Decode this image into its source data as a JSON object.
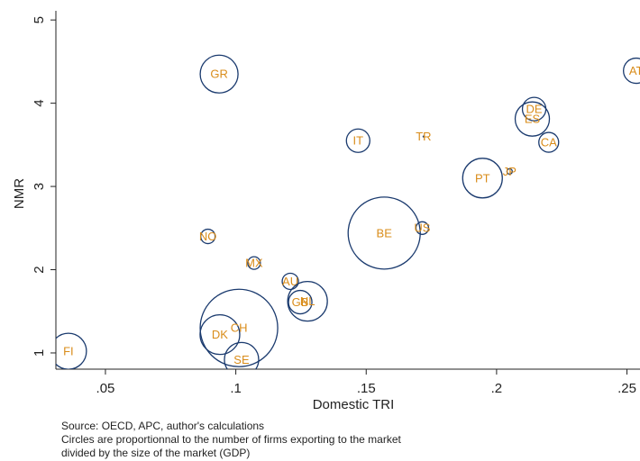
{
  "chart_data": {
    "type": "bubble",
    "xlabel": "Domestic TRI",
    "ylabel": "NMR",
    "labels": [
      "FI",
      "GR",
      "IT",
      "TR",
      "DE",
      "ES",
      "CA",
      "AT",
      "PT",
      "JP",
      "BE",
      "US",
      "NO",
      "MX",
      "AU",
      "GB",
      "NL",
      "DK",
      "CH",
      "SE"
    ],
    "x": [
      0.0358,
      0.0936,
      0.1469,
      0.172,
      0.2144,
      0.2137,
      0.22,
      0.2535,
      0.1946,
      0.205,
      0.1569,
      0.1715,
      0.0893,
      0.107,
      0.1209,
      0.1247,
      0.1275,
      0.0939,
      0.1012,
      0.1022
    ],
    "y": [
      1.02,
      4.35,
      3.55,
      3.6,
      3.93,
      3.81,
      3.53,
      4.39,
      3.1,
      3.18,
      2.44,
      2.5,
      2.4,
      2.08,
      1.86,
      1.61,
      1.62,
      1.22,
      1.3,
      0.92
    ],
    "size": [
      20,
      21,
      13,
      0.5,
      13,
      19,
      11,
      14,
      22,
      3,
      40,
      7,
      8,
      7,
      9,
      13,
      22,
      22,
      43,
      19
    ],
    "color": "#1a3a6e",
    "label_color": "#d98c1a",
    "xlim": [
      0.031,
      0.255
    ],
    "ylim": [
      0.805,
      5.11
    ],
    "xticks": [
      {
        "value": 0.05,
        "label": ".05"
      },
      {
        "value": 0.1,
        "label": ".1"
      },
      {
        "value": 0.15,
        "label": ".15"
      },
      {
        "value": 0.2,
        "label": ".2"
      },
      {
        "value": 0.25,
        "label": ".25"
      }
    ],
    "yticks": [
      1,
      2,
      3,
      4,
      5
    ],
    "notes": [
      "Source: OECD, APC, author's calculations",
      "Circles are proportionnal to the number of firms exporting to the market",
      "divided by the size of the market (GDP)"
    ]
  }
}
